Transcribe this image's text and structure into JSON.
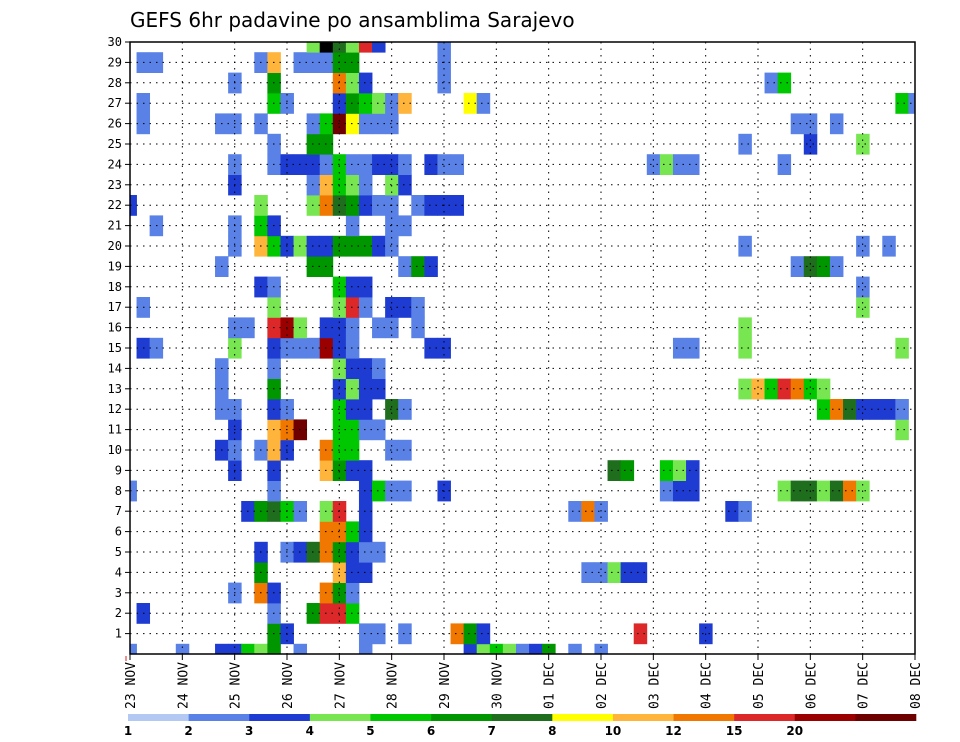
{
  "chart_data": {
    "type": "heatmap",
    "title": "GEFS 6hr padavine po ansamblima Sarajevo",
    "xlabel": "",
    "ylabel": "",
    "x_tick_labels": [
      "23 NOV",
      "24 NOV",
      "25 NOV",
      "26 NOV",
      "27 NOV",
      "28 NOV",
      "29 NOV",
      "30 NOV",
      "01 DEC",
      "02 DEC",
      "03 DEC",
      "04 DEC",
      "05 DEC",
      "06 DEC",
      "07 DEC",
      "08 DEC"
    ],
    "y_tick_labels": [
      "1",
      "2",
      "3",
      "4",
      "5",
      "6",
      "7",
      "8",
      "9",
      "10",
      "11",
      "12",
      "13",
      "14",
      "15",
      "16",
      "17",
      "18",
      "19",
      "20",
      "21",
      "22",
      "23",
      "24",
      "25",
      "26",
      "27",
      "28",
      "29",
      "30"
    ],
    "colorbar": {
      "levels": [
        "1",
        "2",
        "3",
        "4",
        "5",
        "6",
        "7",
        "8",
        "10",
        "12",
        "15",
        "20"
      ],
      "colors": [
        "#b4c8f4",
        "#5a82e6",
        "#1e3cd2",
        "#78e650",
        "#00c800",
        "#009600",
        "#1e6e1e",
        "#ffff00",
        "#ffb43c",
        "#f07800",
        "#dc2828",
        "#9b0000",
        "#6e0000"
      ]
    },
    "cells": [
      [
        0,
        0,
        1
      ],
      [
        0,
        4,
        1
      ],
      [
        0,
        7,
        2
      ],
      [
        0,
        8,
        2
      ],
      [
        0,
        9,
        4
      ],
      [
        0,
        10,
        3
      ],
      [
        0,
        11,
        5
      ],
      [
        0,
        13,
        1
      ],
      [
        0,
        18,
        1
      ],
      [
        0,
        26,
        2
      ],
      [
        0,
        27,
        3
      ],
      [
        0,
        28,
        4
      ],
      [
        0,
        29,
        3
      ],
      [
        0,
        30,
        1
      ],
      [
        0,
        31,
        2
      ],
      [
        0,
        32,
        5
      ],
      [
        0,
        34,
        1
      ],
      [
        0,
        36,
        1
      ],
      [
        1,
        11,
        5
      ],
      [
        1,
        12,
        2
      ],
      [
        1,
        18,
        1
      ],
      [
        1,
        19,
        1
      ],
      [
        1,
        21,
        1
      ],
      [
        1,
        25,
        9
      ],
      [
        1,
        26,
        5
      ],
      [
        1,
        27,
        2
      ],
      [
        1,
        39,
        10
      ],
      [
        1,
        44,
        2
      ],
      [
        2,
        1,
        2
      ],
      [
        2,
        11,
        1
      ],
      [
        2,
        14,
        5
      ],
      [
        2,
        15,
        10
      ],
      [
        2,
        16,
        10
      ],
      [
        2,
        17,
        4
      ],
      [
        3,
        8,
        1
      ],
      [
        3,
        10,
        9
      ],
      [
        3,
        11,
        2
      ],
      [
        3,
        15,
        9
      ],
      [
        3,
        16,
        5
      ],
      [
        3,
        17,
        1
      ],
      [
        4,
        10,
        5
      ],
      [
        4,
        16,
        8
      ],
      [
        4,
        17,
        2
      ],
      [
        4,
        18,
        2
      ],
      [
        4,
        35,
        1
      ],
      [
        4,
        36,
        1
      ],
      [
        4,
        37,
        3
      ],
      [
        4,
        38,
        2
      ],
      [
        4,
        39,
        2
      ],
      [
        5,
        10,
        2
      ],
      [
        5,
        12,
        1
      ],
      [
        5,
        13,
        2
      ],
      [
        5,
        14,
        6
      ],
      [
        5,
        15,
        9
      ],
      [
        5,
        16,
        5
      ],
      [
        5,
        17,
        2
      ],
      [
        5,
        18,
        1
      ],
      [
        5,
        19,
        1
      ],
      [
        6,
        15,
        9
      ],
      [
        6,
        16,
        9
      ],
      [
        6,
        17,
        4
      ],
      [
        6,
        18,
        2
      ],
      [
        7,
        9,
        2
      ],
      [
        7,
        10,
        5
      ],
      [
        7,
        11,
        6
      ],
      [
        7,
        12,
        4
      ],
      [
        7,
        13,
        1
      ],
      [
        7,
        15,
        3
      ],
      [
        7,
        16,
        10
      ],
      [
        7,
        18,
        2
      ],
      [
        7,
        34,
        1
      ],
      [
        7,
        35,
        9
      ],
      [
        7,
        36,
        1
      ],
      [
        7,
        46,
        2
      ],
      [
        7,
        47,
        1
      ],
      [
        8,
        0,
        1
      ],
      [
        8,
        11,
        1
      ],
      [
        8,
        18,
        2
      ],
      [
        8,
        19,
        4
      ],
      [
        8,
        20,
        1
      ],
      [
        8,
        21,
        1
      ],
      [
        8,
        24,
        2
      ],
      [
        8,
        41,
        1
      ],
      [
        8,
        42,
        2
      ],
      [
        8,
        43,
        2
      ],
      [
        8,
        50,
        3
      ],
      [
        8,
        51,
        6
      ],
      [
        8,
        52,
        6
      ],
      [
        8,
        53,
        3
      ],
      [
        8,
        54,
        6
      ],
      [
        8,
        55,
        9
      ],
      [
        8,
        56,
        3
      ],
      [
        9,
        8,
        2
      ],
      [
        9,
        11,
        2
      ],
      [
        9,
        15,
        8
      ],
      [
        9,
        16,
        5
      ],
      [
        9,
        17,
        2
      ],
      [
        9,
        18,
        2
      ],
      [
        9,
        37,
        6
      ],
      [
        9,
        38,
        5
      ],
      [
        9,
        41,
        4
      ],
      [
        9,
        42,
        3
      ],
      [
        9,
        43,
        2
      ],
      [
        10,
        7,
        2
      ],
      [
        10,
        8,
        1
      ],
      [
        10,
        10,
        1
      ],
      [
        10,
        11,
        8
      ],
      [
        10,
        12,
        2
      ],
      [
        10,
        15,
        9
      ],
      [
        10,
        16,
        4
      ],
      [
        10,
        17,
        4
      ],
      [
        10,
        20,
        1
      ],
      [
        10,
        21,
        1
      ],
      [
        11,
        8,
        2
      ],
      [
        11,
        11,
        8
      ],
      [
        11,
        12,
        9
      ],
      [
        11,
        13,
        12
      ],
      [
        11,
        16,
        4
      ],
      [
        11,
        17,
        4
      ],
      [
        11,
        18,
        1
      ],
      [
        11,
        19,
        1
      ],
      [
        11,
        59,
        3
      ],
      [
        12,
        7,
        1
      ],
      [
        12,
        8,
        1
      ],
      [
        12,
        11,
        2
      ],
      [
        12,
        12,
        1
      ],
      [
        12,
        16,
        4
      ],
      [
        12,
        17,
        2
      ],
      [
        12,
        18,
        2
      ],
      [
        12,
        20,
        6
      ],
      [
        12,
        21,
        1
      ],
      [
        12,
        53,
        4
      ],
      [
        12,
        54,
        9
      ],
      [
        12,
        55,
        6
      ],
      [
        12,
        56,
        2
      ],
      [
        12,
        57,
        2
      ],
      [
        12,
        58,
        2
      ],
      [
        12,
        59,
        1
      ],
      [
        13,
        7,
        1
      ],
      [
        13,
        11,
        5
      ],
      [
        13,
        16,
        2
      ],
      [
        13,
        17,
        3
      ],
      [
        13,
        18,
        2
      ],
      [
        13,
        19,
        2
      ],
      [
        13,
        47,
        3
      ],
      [
        13,
        48,
        8
      ],
      [
        13,
        49,
        4
      ],
      [
        13,
        50,
        10
      ],
      [
        13,
        51,
        9
      ],
      [
        13,
        52,
        4
      ],
      [
        13,
        53,
        3
      ],
      [
        14,
        7,
        1
      ],
      [
        14,
        11,
        1
      ],
      [
        14,
        16,
        3
      ],
      [
        14,
        17,
        2
      ],
      [
        14,
        18,
        2
      ],
      [
        14,
        19,
        1
      ],
      [
        15,
        1,
        2
      ],
      [
        15,
        2,
        1
      ],
      [
        15,
        8,
        3
      ],
      [
        15,
        11,
        2
      ],
      [
        15,
        12,
        1
      ],
      [
        15,
        13,
        1
      ],
      [
        15,
        14,
        1
      ],
      [
        15,
        15,
        11
      ],
      [
        15,
        16,
        2
      ],
      [
        15,
        17,
        1
      ],
      [
        15,
        23,
        2
      ],
      [
        15,
        24,
        2
      ],
      [
        15,
        42,
        1
      ],
      [
        15,
        43,
        1
      ],
      [
        15,
        47,
        3
      ],
      [
        15,
        59,
        3
      ],
      [
        16,
        8,
        1
      ],
      [
        16,
        9,
        1
      ],
      [
        16,
        11,
        10
      ],
      [
        16,
        12,
        11
      ],
      [
        16,
        13,
        3
      ],
      [
        16,
        15,
        2
      ],
      [
        16,
        16,
        2
      ],
      [
        16,
        17,
        1
      ],
      [
        16,
        19,
        1
      ],
      [
        16,
        20,
        1
      ],
      [
        16,
        22,
        1
      ],
      [
        16,
        47,
        3
      ],
      [
        17,
        1,
        1
      ],
      [
        17,
        11,
        3
      ],
      [
        17,
        16,
        3
      ],
      [
        17,
        17,
        10
      ],
      [
        17,
        18,
        1
      ],
      [
        17,
        20,
        2
      ],
      [
        17,
        21,
        2
      ],
      [
        17,
        22,
        1
      ],
      [
        17,
        56,
        3
      ],
      [
        18,
        10,
        2
      ],
      [
        18,
        11,
        1
      ],
      [
        18,
        16,
        4
      ],
      [
        18,
        17,
        2
      ],
      [
        18,
        18,
        2
      ],
      [
        18,
        56,
        1
      ],
      [
        19,
        7,
        1
      ],
      [
        19,
        14,
        5
      ],
      [
        19,
        15,
        5
      ],
      [
        19,
        21,
        1
      ],
      [
        19,
        22,
        5
      ],
      [
        19,
        23,
        2
      ],
      [
        19,
        51,
        1
      ],
      [
        19,
        52,
        6
      ],
      [
        19,
        53,
        5
      ],
      [
        19,
        54,
        1
      ],
      [
        20,
        8,
        1
      ],
      [
        20,
        10,
        8
      ],
      [
        20,
        11,
        4
      ],
      [
        20,
        12,
        2
      ],
      [
        20,
        13,
        3
      ],
      [
        20,
        14,
        2
      ],
      [
        20,
        15,
        2
      ],
      [
        20,
        16,
        5
      ],
      [
        20,
        17,
        5
      ],
      [
        20,
        18,
        5
      ],
      [
        20,
        19,
        2
      ],
      [
        20,
        20,
        1
      ],
      [
        20,
        47,
        1
      ],
      [
        20,
        56,
        1
      ],
      [
        20,
        58,
        1
      ],
      [
        21,
        2,
        1
      ],
      [
        21,
        8,
        1
      ],
      [
        21,
        10,
        4
      ],
      [
        21,
        11,
        2
      ],
      [
        21,
        17,
        1
      ],
      [
        21,
        20,
        1
      ],
      [
        21,
        21,
        1
      ],
      [
        22,
        0,
        2
      ],
      [
        22,
        10,
        3
      ],
      [
        22,
        14,
        3
      ],
      [
        22,
        15,
        9
      ],
      [
        22,
        16,
        6
      ],
      [
        22,
        17,
        5
      ],
      [
        22,
        18,
        2
      ],
      [
        22,
        19,
        1
      ],
      [
        22,
        20,
        1
      ],
      [
        22,
        22,
        1
      ],
      [
        22,
        23,
        2
      ],
      [
        22,
        24,
        2
      ],
      [
        22,
        25,
        2
      ],
      [
        23,
        8,
        2
      ],
      [
        23,
        14,
        1
      ],
      [
        23,
        15,
        8
      ],
      [
        23,
        16,
        4
      ],
      [
        23,
        17,
        3
      ],
      [
        23,
        18,
        1
      ],
      [
        23,
        20,
        3
      ],
      [
        23,
        21,
        2
      ],
      [
        24,
        8,
        1
      ],
      [
        24,
        11,
        1
      ],
      [
        24,
        12,
        2
      ],
      [
        24,
        13,
        2
      ],
      [
        24,
        14,
        2
      ],
      [
        24,
        15,
        1
      ],
      [
        24,
        16,
        4
      ],
      [
        24,
        17,
        1
      ],
      [
        24,
        18,
        1
      ],
      [
        24,
        19,
        2
      ],
      [
        24,
        20,
        2
      ],
      [
        24,
        21,
        1
      ],
      [
        24,
        23,
        2
      ],
      [
        24,
        24,
        1
      ],
      [
        24,
        25,
        1
      ],
      [
        24,
        40,
        1
      ],
      [
        24,
        41,
        3
      ],
      [
        24,
        42,
        1
      ],
      [
        24,
        43,
        1
      ],
      [
        24,
        50,
        1
      ],
      [
        25,
        11,
        1
      ],
      [
        25,
        14,
        5
      ],
      [
        25,
        15,
        5
      ],
      [
        25,
        47,
        1
      ],
      [
        25,
        52,
        2
      ],
      [
        25,
        56,
        3
      ],
      [
        26,
        1,
        1
      ],
      [
        26,
        7,
        1
      ],
      [
        26,
        8,
        1
      ],
      [
        26,
        10,
        1
      ],
      [
        26,
        14,
        1
      ],
      [
        26,
        15,
        4
      ],
      [
        26,
        16,
        12
      ],
      [
        26,
        17,
        7
      ],
      [
        26,
        18,
        1
      ],
      [
        26,
        19,
        1
      ],
      [
        26,
        20,
        1
      ],
      [
        26,
        51,
        1
      ],
      [
        26,
        52,
        1
      ],
      [
        26,
        54,
        1
      ],
      [
        27,
        1,
        1
      ],
      [
        27,
        11,
        4
      ],
      [
        27,
        12,
        1
      ],
      [
        27,
        16,
        2
      ],
      [
        27,
        17,
        5
      ],
      [
        27,
        18,
        4
      ],
      [
        27,
        19,
        3
      ],
      [
        27,
        20,
        1
      ],
      [
        27,
        21,
        8
      ],
      [
        27,
        26,
        7
      ],
      [
        27,
        27,
        1
      ],
      [
        27,
        59,
        4
      ],
      [
        27,
        60,
        1
      ],
      [
        28,
        8,
        1
      ],
      [
        28,
        11,
        5
      ],
      [
        28,
        16,
        9
      ],
      [
        28,
        17,
        3
      ],
      [
        28,
        18,
        2
      ],
      [
        28,
        24,
        1
      ],
      [
        28,
        49,
        1
      ],
      [
        28,
        50,
        4
      ],
      [
        29,
        1,
        1
      ],
      [
        29,
        2,
        1
      ],
      [
        29,
        10,
        1
      ],
      [
        29,
        11,
        8
      ],
      [
        29,
        13,
        1
      ],
      [
        29,
        14,
        1
      ],
      [
        29,
        15,
        1
      ],
      [
        29,
        16,
        5
      ],
      [
        29,
        17,
        5
      ],
      [
        29,
        24,
        1
      ],
      [
        30,
        14,
        3
      ],
      [
        30,
        15,
        13
      ],
      [
        30,
        16,
        6
      ],
      [
        30,
        17,
        3
      ],
      [
        30,
        18,
        10
      ],
      [
        30,
        19,
        2
      ],
      [
        30,
        24,
        1
      ]
    ]
  }
}
